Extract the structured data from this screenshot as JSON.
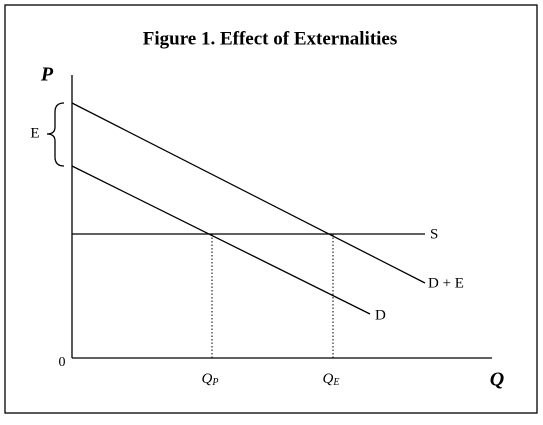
{
  "title": "Figure 1. Effect of Externalities",
  "axes": {
    "y": "P",
    "x": "Q",
    "origin": "0"
  },
  "curves": {
    "supply": "S",
    "demand": "D",
    "demand_plus_externality": "D + E"
  },
  "quantities": {
    "private": {
      "main": "Q",
      "sub": "P"
    },
    "efficient": {
      "main": "Q",
      "sub": "E"
    }
  },
  "externality": "E"
}
